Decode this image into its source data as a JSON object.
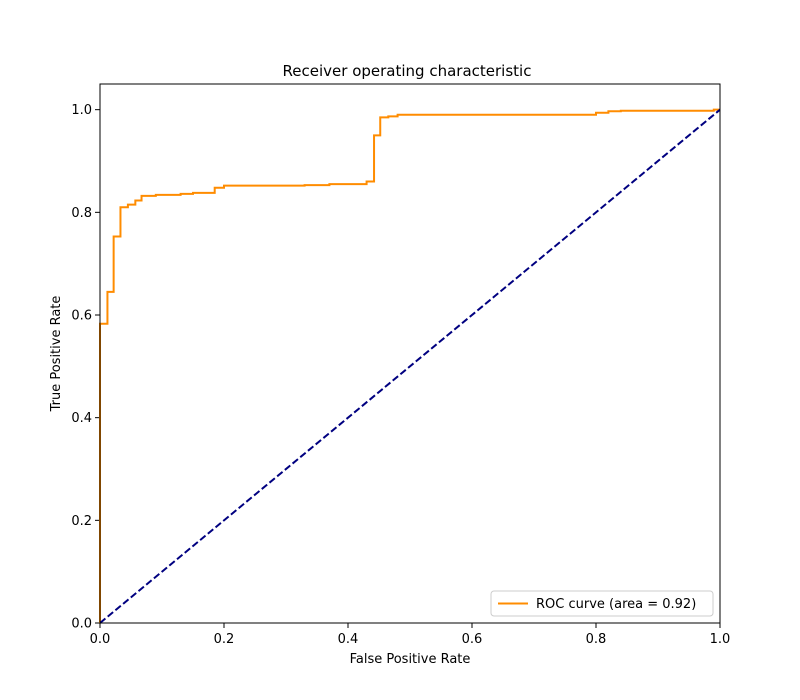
{
  "chart_data": {
    "type": "line",
    "title": "Receiver operating characteristic",
    "xlabel": "False Positive Rate",
    "ylabel": "True Positive Rate",
    "xlim": [
      0.0,
      1.0
    ],
    "ylim": [
      0.0,
      1.05
    ],
    "xticks": [
      0.0,
      0.2,
      0.4,
      0.6,
      0.8,
      1.0
    ],
    "xtick_labels": [
      "0.0",
      "0.2",
      "0.4",
      "0.6",
      "0.8",
      "1.0"
    ],
    "yticks": [
      0.0,
      0.2,
      0.4,
      0.6,
      0.8,
      1.0
    ],
    "ytick_labels": [
      "0.0",
      "0.2",
      "0.4",
      "0.6",
      "0.8",
      "1.0"
    ],
    "grid": false,
    "legend_position": "lower right",
    "series": [
      {
        "name": "ROC curve (area = 0.92)",
        "color": "#ff8c00",
        "style": "step",
        "points": [
          [
            0.0,
            0.0
          ],
          [
            0.0,
            0.583
          ],
          [
            0.012,
            0.583
          ],
          [
            0.012,
            0.645
          ],
          [
            0.022,
            0.645
          ],
          [
            0.022,
            0.753
          ],
          [
            0.033,
            0.753
          ],
          [
            0.033,
            0.81
          ],
          [
            0.045,
            0.81
          ],
          [
            0.045,
            0.815
          ],
          [
            0.057,
            0.815
          ],
          [
            0.057,
            0.823
          ],
          [
            0.067,
            0.823
          ],
          [
            0.067,
            0.832
          ],
          [
            0.09,
            0.832
          ],
          [
            0.09,
            0.834
          ],
          [
            0.13,
            0.834
          ],
          [
            0.13,
            0.836
          ],
          [
            0.15,
            0.836
          ],
          [
            0.15,
            0.838
          ],
          [
            0.185,
            0.838
          ],
          [
            0.185,
            0.848
          ],
          [
            0.2,
            0.848
          ],
          [
            0.2,
            0.852
          ],
          [
            0.33,
            0.852
          ],
          [
            0.33,
            0.853
          ],
          [
            0.37,
            0.853
          ],
          [
            0.37,
            0.855
          ],
          [
            0.43,
            0.855
          ],
          [
            0.43,
            0.86
          ],
          [
            0.442,
            0.86
          ],
          [
            0.442,
            0.95
          ],
          [
            0.452,
            0.95
          ],
          [
            0.452,
            0.985
          ],
          [
            0.465,
            0.985
          ],
          [
            0.465,
            0.987
          ],
          [
            0.48,
            0.987
          ],
          [
            0.48,
            0.99
          ],
          [
            0.8,
            0.99
          ],
          [
            0.8,
            0.994
          ],
          [
            0.82,
            0.994
          ],
          [
            0.82,
            0.997
          ],
          [
            0.84,
            0.997
          ],
          [
            0.84,
            0.998
          ],
          [
            0.99,
            0.998
          ],
          [
            0.99,
            1.0
          ],
          [
            1.0,
            1.0
          ]
        ]
      },
      {
        "name": "",
        "color": "#000080",
        "style": "dashed",
        "points": [
          [
            0.0,
            0.0
          ],
          [
            1.0,
            1.0
          ]
        ]
      }
    ]
  }
}
